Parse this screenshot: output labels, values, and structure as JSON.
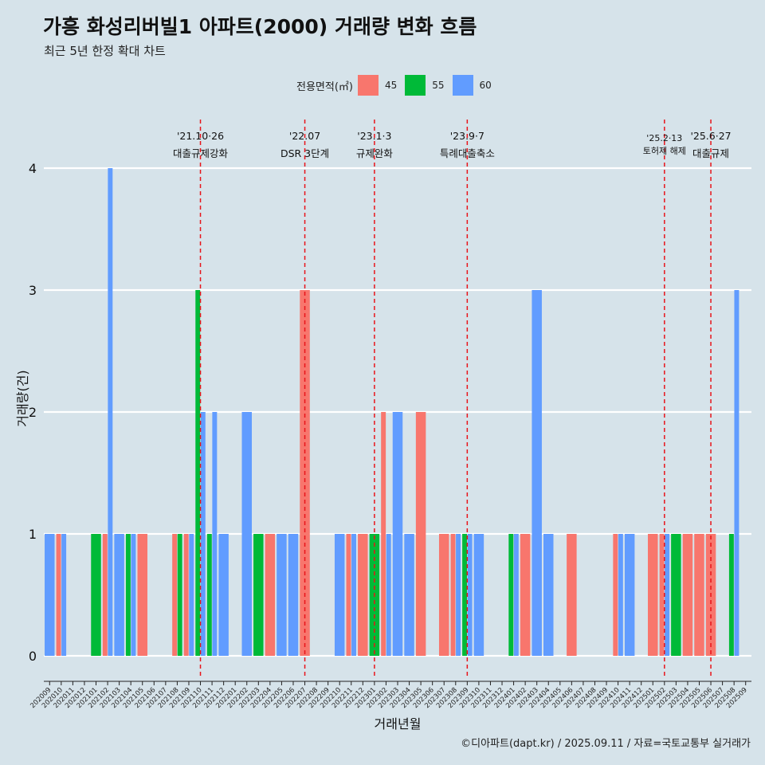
{
  "title": "가흥 화성리버빌1 아파트(2000) 거래량 변화 흐름",
  "subtitle": "최근 5년 한정 확대 차트",
  "legend": {
    "title": "전용면적(㎡)",
    "items": [
      {
        "label": "45",
        "color": "#F8766D"
      },
      {
        "label": "55",
        "color": "#00BA38"
      },
      {
        "label": "60",
        "color": "#619CFF"
      }
    ]
  },
  "caption": "©디아파트(dapt.kr) / 2025.09.11 / 자료=국토교통부 실거래가",
  "chart_data": {
    "type": "bar",
    "stacking": "dodge",
    "xlabel": "거래년월",
    "ylabel": "거래량(건)",
    "ylim": [
      0,
      4
    ],
    "yticks": [
      0,
      1,
      2,
      3,
      4
    ],
    "grid": true,
    "categories": [
      "202009",
      "202010",
      "202011",
      "202012",
      "202101",
      "202102",
      "202103",
      "202104",
      "202105",
      "202106",
      "202107",
      "202108",
      "202109",
      "202110",
      "202111",
      "202112",
      "202201",
      "202202",
      "202203",
      "202204",
      "202205",
      "202206",
      "202207",
      "202208",
      "202209",
      "202210",
      "202211",
      "202212",
      "202301",
      "202302",
      "202303",
      "202304",
      "202305",
      "202306",
      "202307",
      "202308",
      "202309",
      "202310",
      "202311",
      "202312",
      "202401",
      "202402",
      "202403",
      "202404",
      "202405",
      "202406",
      "202407",
      "202408",
      "202409",
      "202410",
      "202411",
      "202412",
      "202501",
      "202502",
      "202503",
      "202504",
      "202505",
      "202506",
      "202507",
      "202508",
      "202509"
    ],
    "series": [
      {
        "name": "45",
        "color": "#F8766D",
        "values": [
          0,
          1,
          0,
          0,
          0,
          1,
          0,
          0,
          1,
          0,
          0,
          1,
          1,
          0,
          0,
          0,
          0,
          0,
          0,
          1,
          0,
          0,
          3,
          0,
          0,
          0,
          1,
          1,
          0,
          2,
          0,
          0,
          2,
          0,
          1,
          1,
          0,
          0,
          0,
          0,
          0,
          1,
          0,
          0,
          0,
          1,
          0,
          0,
          0,
          1,
          0,
          0,
          1,
          1,
          0,
          1,
          1,
          1,
          0,
          0,
          0
        ]
      },
      {
        "name": "55",
        "color": "#00BA38",
        "values": [
          0,
          0,
          0,
          0,
          1,
          0,
          0,
          1,
          0,
          0,
          0,
          1,
          0,
          3,
          1,
          0,
          0,
          0,
          1,
          0,
          0,
          0,
          0,
          0,
          0,
          0,
          0,
          0,
          1,
          0,
          0,
          0,
          0,
          0,
          0,
          0,
          1,
          0,
          0,
          0,
          1,
          0,
          0,
          0,
          0,
          0,
          0,
          0,
          0,
          0,
          0,
          0,
          0,
          0,
          1,
          0,
          0,
          0,
          0,
          1,
          0
        ]
      },
      {
        "name": "60",
        "color": "#619CFF",
        "values": [
          1,
          1,
          0,
          0,
          0,
          4,
          1,
          1,
          0,
          0,
          0,
          0,
          1,
          2,
          2,
          1,
          0,
          2,
          0,
          0,
          1,
          1,
          0,
          0,
          0,
          1,
          1,
          0,
          0,
          1,
          2,
          1,
          0,
          0,
          0,
          1,
          1,
          1,
          0,
          0,
          1,
          0,
          3,
          1,
          0,
          0,
          0,
          0,
          0,
          1,
          1,
          0,
          0,
          1,
          0,
          0,
          0,
          0,
          0,
          3,
          0
        ]
      }
    ],
    "events": [
      {
        "x": "202110",
        "date": "'21.10·26",
        "label": "대출규제강화"
      },
      {
        "x": "202207",
        "date": "'22.07",
        "label": "DSR 3단계"
      },
      {
        "x": "202301",
        "date": "'23.1·3",
        "label": "규제완화"
      },
      {
        "x": "202309",
        "date": "'23.9·7",
        "label": "특례대출축소"
      },
      {
        "x": "202502",
        "date": "'25.2·13",
        "label": "토허제 해제"
      },
      {
        "x": "202506",
        "date": "'25.6·27",
        "label": "대출규제"
      }
    ]
  }
}
